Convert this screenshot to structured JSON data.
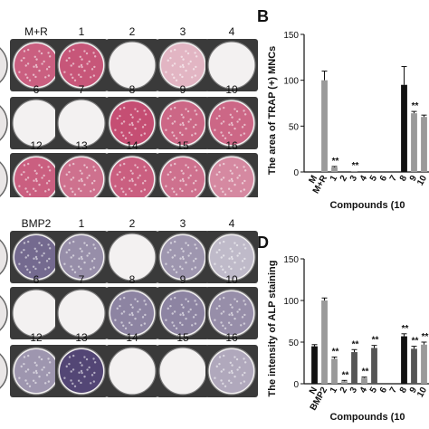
{
  "panels": {
    "B": "B",
    "D": "D"
  },
  "trap_wells": {
    "row1": [
      "M+R",
      "1",
      "2",
      "3",
      "4"
    ],
    "row2": [
      "6",
      "7",
      "8",
      "9",
      "10"
    ],
    "row3": [
      "12",
      "13",
      "14",
      "15",
      "16"
    ]
  },
  "alp_wells": {
    "row1": [
      "BMP2",
      "1",
      "2",
      "3",
      "4"
    ],
    "row2": [
      "6",
      "7",
      "8",
      "9",
      "10"
    ],
    "row3": [
      "12",
      "13",
      "14",
      "15",
      "16"
    ]
  },
  "colors": {
    "trap_stain": "#c2456c",
    "alp_stain": "#4a3c6e",
    "black_bar": "#111111",
    "gray_bar": "#9a9a9a",
    "dark_gray_bar": "#555555"
  },
  "chart_data": [
    {
      "type": "bar",
      "panel": "B",
      "ylabel": "The area of TRAP (+) MNCs",
      "xlabel": "Compounds (10",
      "ylim": [
        0,
        150
      ],
      "yticks": [
        "0",
        "50",
        "100",
        "150"
      ],
      "categories": [
        "M",
        "M+R",
        "1",
        "2",
        "3",
        "4",
        "5",
        "6",
        "7",
        "8",
        "9",
        "10"
      ],
      "values": [
        0,
        100,
        5,
        0,
        1,
        0,
        0,
        0,
        0,
        95,
        64,
        60
      ],
      "errors": [
        0,
        10,
        1,
        0,
        0,
        0,
        0,
        0,
        0,
        20,
        2,
        2
      ],
      "bar_colors": [
        "#111111",
        "#9a9a9a",
        "#9a9a9a",
        "#9a9a9a",
        "#9a9a9a",
        "#9a9a9a",
        "#9a9a9a",
        "#9a9a9a",
        "#9a9a9a",
        "#111111",
        "#9a9a9a",
        "#9a9a9a"
      ],
      "annotations": [
        "",
        "",
        "**",
        "",
        "**",
        "",
        "",
        "",
        "",
        "",
        "**",
        ""
      ]
    },
    {
      "type": "bar",
      "panel": "D",
      "ylabel": "The  intensity of ALP staining",
      "xlabel": "Compounds (10",
      "ylim": [
        0,
        150
      ],
      "yticks": [
        "0",
        "50",
        "100",
        "150"
      ],
      "categories": [
        "N",
        "BMP2",
        "1",
        "2",
        "3",
        "4",
        "5",
        "6",
        "7",
        "8",
        "9",
        "10"
      ],
      "values": [
        45,
        100,
        30,
        3,
        38,
        7,
        43,
        0,
        0,
        57,
        42,
        47
      ],
      "errors": [
        2,
        3,
        2,
        1,
        3,
        1,
        3,
        0,
        0,
        3,
        3,
        3
      ],
      "bar_colors": [
        "#111111",
        "#9a9a9a",
        "#9a9a9a",
        "#9a9a9a",
        "#555555",
        "#9a9a9a",
        "#555555",
        "#9a9a9a",
        "#9a9a9a",
        "#111111",
        "#555555",
        "#9a9a9a"
      ],
      "annotations": [
        "",
        "",
        "**",
        "**",
        "**",
        "**",
        "**",
        "",
        "",
        "**",
        "**",
        "**"
      ]
    }
  ]
}
